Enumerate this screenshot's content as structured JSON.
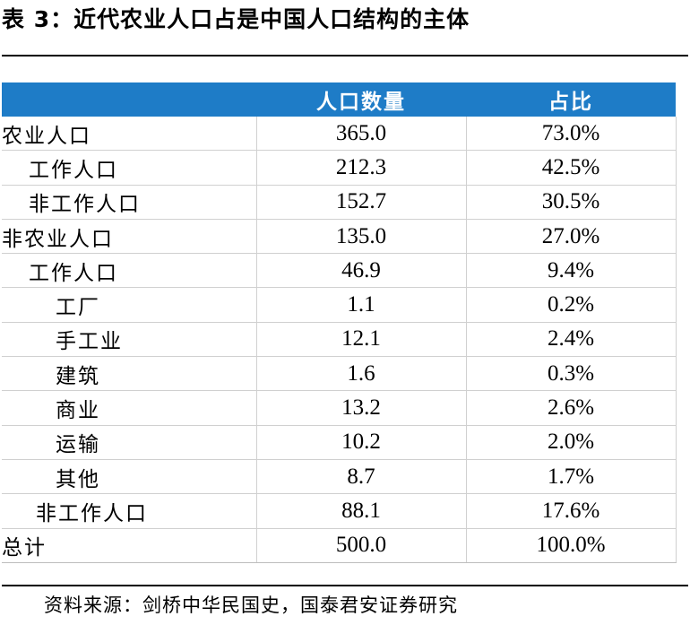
{
  "title": "表 3：近代农业人口占是中国人口结构的主体",
  "table": {
    "headers": [
      "",
      "人口数量",
      "占比"
    ],
    "rows": [
      {
        "label": "农业人口",
        "level": 0,
        "population": "365.0",
        "share": "73.0%"
      },
      {
        "label": "工作人口",
        "level": 1,
        "population": "212.3",
        "share": "42.5%"
      },
      {
        "label": "非工作人口",
        "level": 1,
        "population": "152.7",
        "share": "30.5%"
      },
      {
        "label": "非农业人口",
        "level": 0,
        "population": "135.0",
        "share": "27.0%"
      },
      {
        "label": "工作人口",
        "level": 1,
        "population": "46.9",
        "share": "9.4%"
      },
      {
        "label": "工厂",
        "level": 3,
        "population": "1.1",
        "share": "0.2%"
      },
      {
        "label": "手工业",
        "level": 3,
        "population": "12.1",
        "share": "2.4%"
      },
      {
        "label": "建筑",
        "level": 3,
        "population": "1.6",
        "share": "0.3%"
      },
      {
        "label": "商业",
        "level": 3,
        "population": "13.2",
        "share": "2.6%"
      },
      {
        "label": "运输",
        "level": 3,
        "population": "10.2",
        "share": "2.0%"
      },
      {
        "label": "其他",
        "level": 3,
        "population": "8.7",
        "share": "1.7%"
      },
      {
        "label": "非工作人口",
        "level": 2,
        "population": "88.1",
        "share": "17.6%"
      },
      {
        "label": "总计",
        "level": 0,
        "population": "500.0",
        "share": "100.0%"
      }
    ]
  },
  "source": "资料来源：剑桥中华民国史，国泰君安证券研究",
  "colors": {
    "header_background": "#1e7cc7",
    "header_text": "#ffffff",
    "grid_line": "#d0d0d0"
  }
}
